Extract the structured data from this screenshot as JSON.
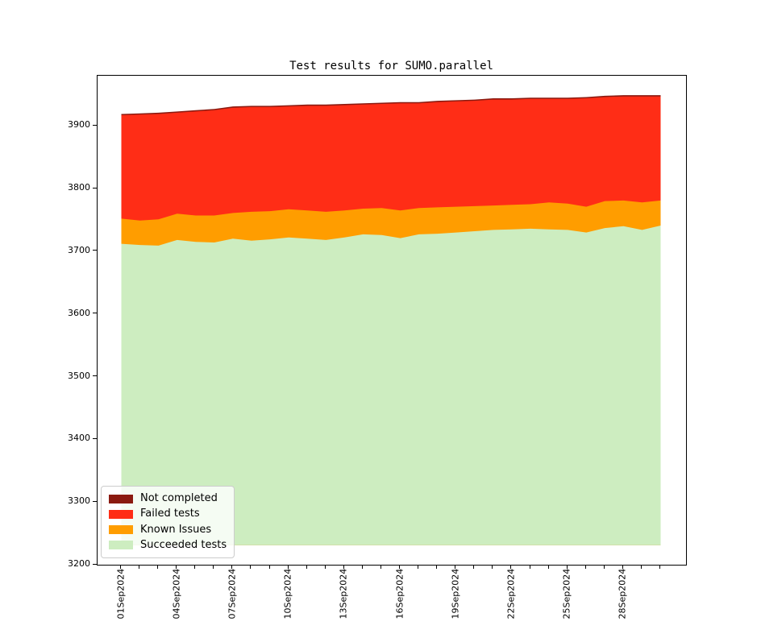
{
  "title": "Test results for SUMO.parallel",
  "colors": {
    "not_completed": "#8b1a10",
    "failed": "#ff2d16",
    "known": "#ff9d00",
    "succeeded": "#cdedc0",
    "axis": "#000000",
    "background": "#ffffff",
    "legend_border": "#cccccc"
  },
  "legend": {
    "items": [
      {
        "label": "Not completed",
        "color_key": "not_completed"
      },
      {
        "label": "Failed tests",
        "color_key": "failed"
      },
      {
        "label": "Known Issues",
        "color_key": "known"
      },
      {
        "label": "Succeeded tests",
        "color_key": "succeeded"
      }
    ]
  },
  "axes": {
    "y_ticks": [
      3200,
      3300,
      3400,
      3500,
      3600,
      3700,
      3800,
      3900
    ],
    "x_label_every": 3,
    "x_labels_shown": [
      "01Sep2024",
      "04Sep2024",
      "07Sep2024",
      "10Sep2024",
      "13Sep2024",
      "16Sep2024",
      "19Sep2024",
      "22Sep2024",
      "25Sep2024",
      "28Sep2024"
    ]
  },
  "chart_data": {
    "type": "area",
    "stacked": true,
    "title": "Test results for SUMO.parallel",
    "xlabel": "",
    "ylabel": "",
    "ylim": [
      3200,
      3980
    ],
    "baseline": 3231,
    "grid": false,
    "legend_position": "lower left",
    "x": [
      "01Sep2024",
      "02Sep2024",
      "03Sep2024",
      "04Sep2024",
      "05Sep2024",
      "06Sep2024",
      "07Sep2024",
      "08Sep2024",
      "09Sep2024",
      "10Sep2024",
      "11Sep2024",
      "12Sep2024",
      "13Sep2024",
      "14Sep2024",
      "15Sep2024",
      "16Sep2024",
      "17Sep2024",
      "18Sep2024",
      "19Sep2024",
      "20Sep2024",
      "21Sep2024",
      "22Sep2024",
      "23Sep2024",
      "24Sep2024",
      "25Sep2024",
      "26Sep2024",
      "27Sep2024",
      "28Sep2024",
      "29Sep2024",
      "30Sep2024"
    ],
    "series": [
      {
        "name": "Succeeded tests",
        "color_key": "succeeded",
        "top": [
          3712,
          3710,
          3709,
          3718,
          3715,
          3714,
          3720,
          3717,
          3719,
          3722,
          3720,
          3718,
          3722,
          3727,
          3726,
          3721,
          3727,
          3728,
          3730,
          3732,
          3734,
          3735,
          3736,
          3735,
          3734,
          3730,
          3737,
          3740,
          3734,
          3741
        ]
      },
      {
        "name": "Known Issues",
        "color_key": "known",
        "top": [
          3752,
          3749,
          3751,
          3760,
          3757,
          3757,
          3761,
          3763,
          3764,
          3767,
          3765,
          3763,
          3765,
          3768,
          3769,
          3765,
          3769,
          3770,
          3771,
          3772,
          3773,
          3774,
          3775,
          3778,
          3776,
          3771,
          3780,
          3781,
          3778,
          3781
        ]
      },
      {
        "name": "Failed tests",
        "color_key": "failed",
        "top": [
          3917,
          3918,
          3919,
          3921,
          3923,
          3925,
          3929,
          3930,
          3930,
          3931,
          3932,
          3932,
          3933,
          3934,
          3935,
          3936,
          3936,
          3938,
          3939,
          3940,
          3942,
          3942,
          3943,
          3943,
          3943,
          3944,
          3946,
          3947,
          3947,
          3947
        ]
      },
      {
        "name": "Not completed",
        "color_key": "not_completed",
        "top": [
          3919,
          3920,
          3921,
          3923,
          3925,
          3927,
          3931,
          3932,
          3932,
          3933,
          3934,
          3934,
          3935,
          3936,
          3937,
          3938,
          3938,
          3940,
          3941,
          3942,
          3944,
          3944,
          3945,
          3945,
          3945,
          3946,
          3948,
          3949,
          3949,
          3949
        ]
      }
    ]
  }
}
